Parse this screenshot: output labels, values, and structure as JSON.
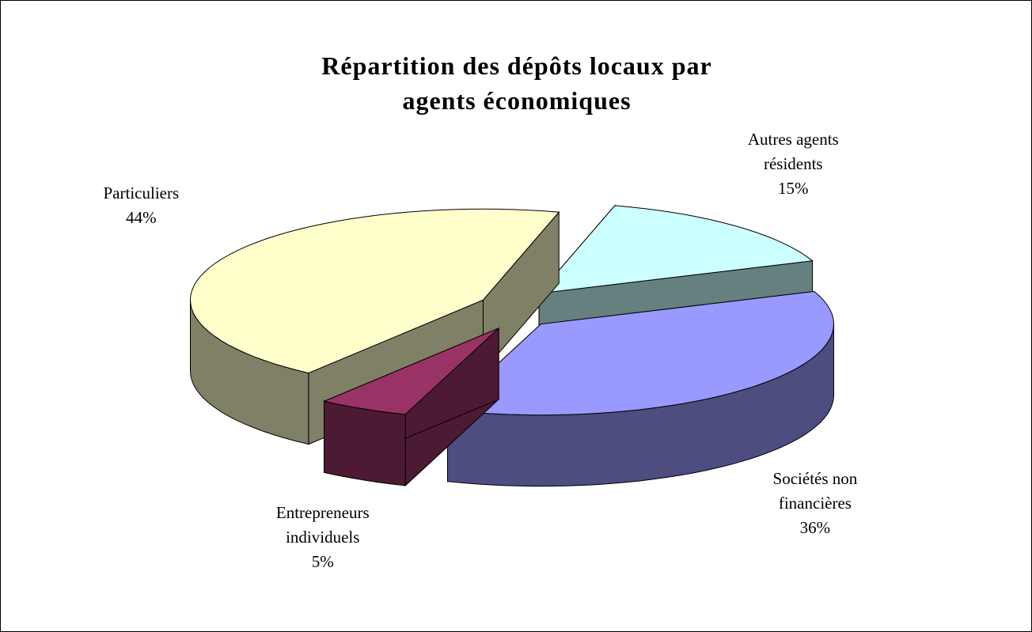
{
  "chart_data": {
    "type": "pie3d",
    "title": "Répartition des dépôts locaux par agents économiques",
    "categories": [
      "Autres agents résidents",
      "Sociétés non financières",
      "Entrepreneurs individuels",
      "Particuliers"
    ],
    "values": [
      15,
      36,
      5,
      44
    ],
    "value_labels": [
      "15%",
      "36%",
      "5%",
      "44%"
    ],
    "colors": [
      "#ccffff",
      "#9999ff",
      "#993366",
      "#ffffcc"
    ]
  }
}
